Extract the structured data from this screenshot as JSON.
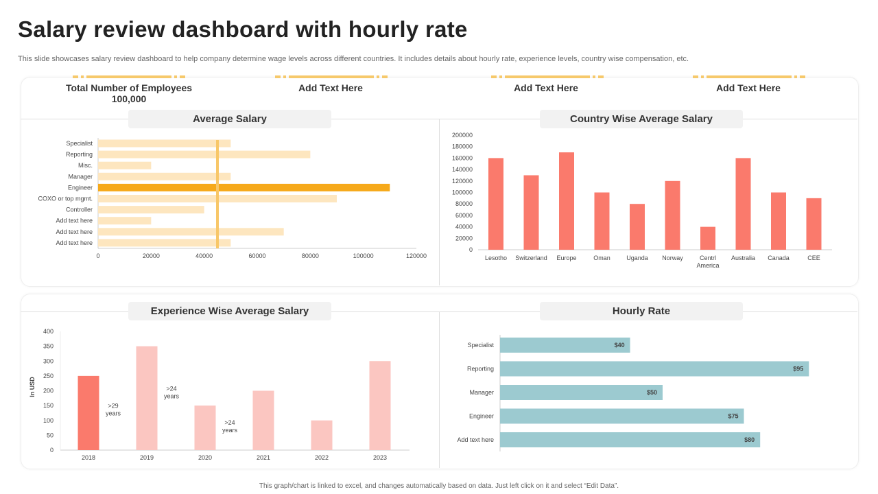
{
  "title": "Salary review dashboard with hourly rate",
  "subtitle": "This slide showcases salary review dashboard to help company determine wage levels across different countries. It includes details about hourly rate, experience levels, country wise compensation, etc.",
  "stats": [
    {
      "label": "Total Number of Employees",
      "value": "100,000"
    },
    {
      "label": "Add Text Here"
    },
    {
      "label": "Add Text Here"
    },
    {
      "label": "Add Text Here"
    }
  ],
  "footer": "This graph/chart is linked to excel, and changes automatically based on data. Just left click on it and select “Edit Data”.",
  "colors": {
    "accent": "#f6a91a",
    "light_bar": "#fde6bf",
    "avg_line": "#f8c768",
    "country": "#fa7a6c",
    "exp_highlight": "#fa7a6c",
    "exp_bar": "#fbc6c1",
    "hourly": "#9ccad0"
  },
  "chart_data": [
    {
      "type": "bar",
      "orientation": "horizontal",
      "title": "Average Salary",
      "categories": [
        "Specialist",
        "Reporting",
        "Misc.",
        "Manager",
        "Engineer",
        "COXO or top mgmt.",
        "Controller",
        "Add text here",
        "Add text here",
        "Add text here"
      ],
      "values": [
        50000,
        80000,
        20000,
        50000,
        110000,
        90000,
        40000,
        20000,
        70000,
        50000
      ],
      "highlight": "Engineer",
      "reference_line": 45000,
      "xlim": [
        0,
        120000
      ],
      "xticks": [
        0,
        20000,
        40000,
        60000,
        80000,
        100000,
        120000
      ],
      "grid": false
    },
    {
      "type": "bar",
      "title": "Country Wise Average Salary",
      "categories": [
        "Lesotho",
        "Switzerland",
        "Europe",
        "Oman",
        "Uganda",
        "Norway",
        "Centrl America",
        "Australia",
        "Canada",
        "CEE"
      ],
      "values": [
        160000,
        130000,
        170000,
        100000,
        80000,
        120000,
        40000,
        160000,
        100000,
        90000
      ],
      "ylim": [
        0,
        200000
      ],
      "yticks": [
        0,
        20000,
        40000,
        60000,
        80000,
        100000,
        120000,
        140000,
        160000,
        180000,
        200000
      ],
      "grid": false
    },
    {
      "type": "bar",
      "title": "Experience Wise Average Salary",
      "ylabel": "In USD",
      "categories": [
        "2018",
        "2019",
        "2020",
        "2021",
        "2022",
        "2023"
      ],
      "values": [
        250,
        350,
        150,
        200,
        100,
        300
      ],
      "highlight": "2018",
      "annotations": [
        {
          "category": "2018",
          "text": [
            ">29",
            "years"
          ]
        },
        {
          "category": "2019",
          "text": [
            ">24",
            "years"
          ]
        },
        {
          "category": "2020",
          "text": [
            ">24",
            "years"
          ]
        }
      ],
      "ylim": [
        0,
        400
      ],
      "yticks": [
        0,
        50,
        100,
        150,
        200,
        250,
        300,
        350,
        400
      ],
      "grid": false
    },
    {
      "type": "bar",
      "orientation": "horizontal",
      "title": "Hourly Rate",
      "categories": [
        "Specialist",
        "Reporting",
        "Manager",
        "Engineer",
        "Add text here"
      ],
      "values": [
        40,
        95,
        50,
        75,
        80
      ],
      "data_labels": [
        "$40",
        "$95",
        "$50",
        "$75",
        "$80"
      ],
      "xlim": [
        0,
        100
      ],
      "grid": false
    }
  ]
}
